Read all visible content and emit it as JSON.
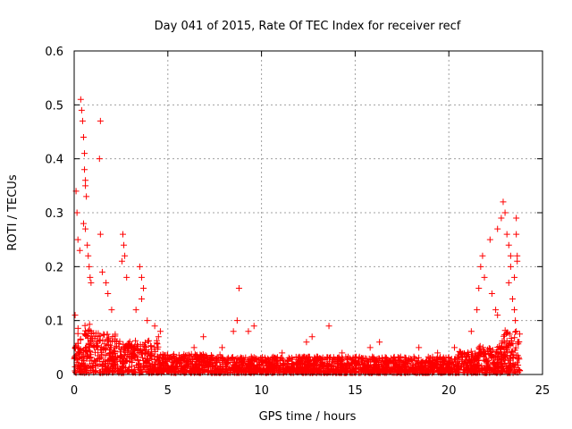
{
  "chart_data": {
    "type": "scatter",
    "title": "Day 041 of 2015, Rate Of TEC Index for receiver recf",
    "xlabel": "GPS time / hours",
    "ylabel": "ROTI / TECUs",
    "xlim": [
      0,
      25
    ],
    "ylim": [
      0,
      0.6
    ],
    "x_ticks": [
      0,
      5,
      10,
      15,
      20,
      25
    ],
    "x_tick_labels": [
      "0",
      "5",
      "10",
      "15",
      "20",
      "25"
    ],
    "y_ticks": [
      0,
      0.1,
      0.2,
      0.3,
      0.4,
      0.5,
      0.6
    ],
    "y_tick_labels": [
      "0",
      "0.1",
      "0.2",
      "0.3",
      "0.4",
      "0.5",
      "0.6"
    ],
    "grid": true,
    "marker": "+",
    "marker_color": "#ff0000",
    "series": [
      {
        "name": "ROTI",
        "points": [
          [
            0.05,
            0.11
          ],
          [
            0.1,
            0.34
          ],
          [
            0.15,
            0.3
          ],
          [
            0.2,
            0.25
          ],
          [
            0.3,
            0.23
          ],
          [
            0.35,
            0.51
          ],
          [
            0.4,
            0.49
          ],
          [
            0.45,
            0.47
          ],
          [
            0.5,
            0.44
          ],
          [
            0.55,
            0.41
          ],
          [
            0.55,
            0.38
          ],
          [
            0.6,
            0.36
          ],
          [
            0.6,
            0.35
          ],
          [
            0.65,
            0.33
          ],
          [
            0.5,
            0.28
          ],
          [
            0.6,
            0.27
          ],
          [
            0.7,
            0.24
          ],
          [
            0.75,
            0.22
          ],
          [
            0.8,
            0.2
          ],
          [
            0.85,
            0.18
          ],
          [
            0.9,
            0.17
          ],
          [
            1.4,
            0.47
          ],
          [
            1.35,
            0.4
          ],
          [
            1.4,
            0.26
          ],
          [
            1.5,
            0.19
          ],
          [
            1.7,
            0.17
          ],
          [
            1.8,
            0.15
          ],
          [
            2.0,
            0.12
          ],
          [
            2.6,
            0.26
          ],
          [
            2.65,
            0.24
          ],
          [
            2.7,
            0.22
          ],
          [
            2.55,
            0.21
          ],
          [
            2.8,
            0.18
          ],
          [
            3.5,
            0.2
          ],
          [
            3.6,
            0.18
          ],
          [
            3.7,
            0.16
          ],
          [
            3.6,
            0.14
          ],
          [
            3.3,
            0.12
          ],
          [
            3.9,
            0.1
          ],
          [
            4.3,
            0.09
          ],
          [
            4.6,
            0.08
          ],
          [
            4.5,
            0.07
          ],
          [
            6.4,
            0.05
          ],
          [
            6.9,
            0.07
          ],
          [
            7.9,
            0.05
          ],
          [
            8.5,
            0.08
          ],
          [
            8.8,
            0.16
          ],
          [
            8.7,
            0.1
          ],
          [
            9.3,
            0.08
          ],
          [
            9.6,
            0.09
          ],
          [
            11.1,
            0.04
          ],
          [
            12.4,
            0.06
          ],
          [
            12.7,
            0.07
          ],
          [
            13.6,
            0.09
          ],
          [
            14.3,
            0.04
          ],
          [
            15.8,
            0.05
          ],
          [
            16.3,
            0.06
          ],
          [
            18.4,
            0.05
          ],
          [
            19.4,
            0.04
          ],
          [
            20.3,
            0.05
          ],
          [
            21.2,
            0.08
          ],
          [
            21.5,
            0.12
          ],
          [
            21.6,
            0.16
          ],
          [
            21.7,
            0.2
          ],
          [
            21.8,
            0.22
          ],
          [
            21.9,
            0.18
          ],
          [
            22.3,
            0.15
          ],
          [
            22.5,
            0.12
          ],
          [
            22.6,
            0.11
          ],
          [
            22.2,
            0.25
          ],
          [
            22.6,
            0.27
          ],
          [
            22.8,
            0.29
          ],
          [
            22.9,
            0.32
          ],
          [
            23.0,
            0.3
          ],
          [
            23.1,
            0.26
          ],
          [
            23.2,
            0.24
          ],
          [
            23.3,
            0.22
          ],
          [
            23.3,
            0.2
          ],
          [
            23.2,
            0.17
          ],
          [
            23.4,
            0.14
          ],
          [
            23.5,
            0.12
          ],
          [
            23.6,
            0.29
          ],
          [
            23.6,
            0.26
          ],
          [
            23.65,
            0.22
          ],
          [
            23.65,
            0.21
          ],
          [
            23.5,
            0.18
          ],
          [
            23.55,
            0.1
          ],
          [
            23.6,
            0.08
          ],
          [
            23.7,
            0.06
          ]
        ]
      }
    ]
  }
}
